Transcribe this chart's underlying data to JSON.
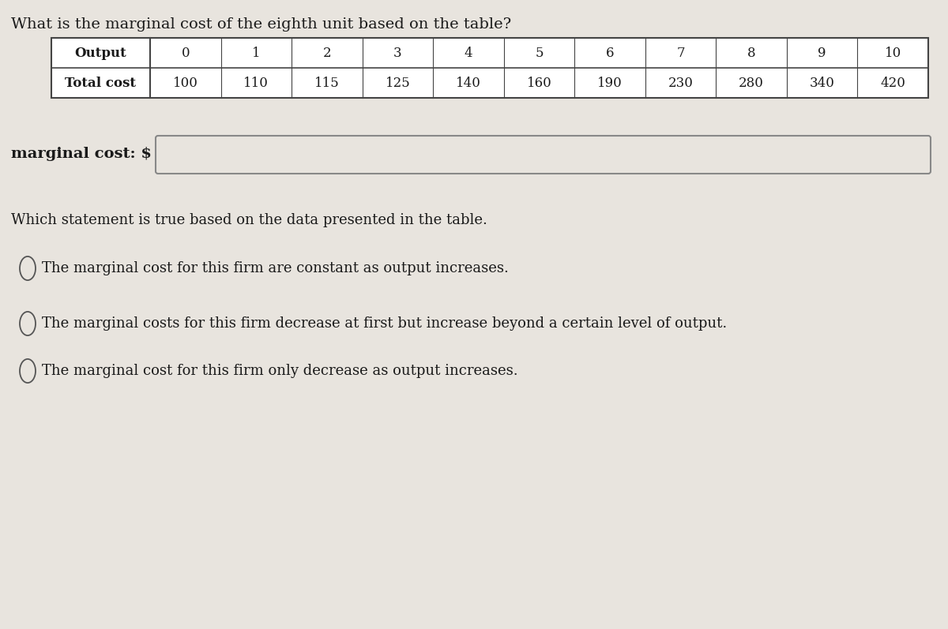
{
  "title": "What is the marginal cost of the eighth unit based on the table?",
  "table_headers": [
    "Output",
    "0",
    "1",
    "2",
    "3",
    "4",
    "5",
    "6",
    "7",
    "8",
    "9",
    "10"
  ],
  "table_row2_label": "Total cost",
  "table_row2_values": [
    "100",
    "110",
    "115",
    "125",
    "140",
    "160",
    "190",
    "230",
    "280",
    "340",
    "420"
  ],
  "marginal_cost_label": "marginal cost: $",
  "which_statement": "Which statement is true based on the data presented in the table.",
  "options": [
    "The marginal cost for this firm are constant as output increases.",
    "The marginal costs for this firm decrease at first but increase beyond a certain level of output.",
    "The marginal cost for this firm only decrease as output increases."
  ],
  "bg_color": "#e8e4de",
  "table_bg": "#ffffff",
  "text_color": "#1a1a1a",
  "input_box_bg": "#e8e4de",
  "input_box_edge": "#888888",
  "table_edge_color": "#444444",
  "font_size_title": 14,
  "font_size_table": 12,
  "font_size_body": 13,
  "radio_circle_color": "#e8e4de",
  "radio_edge_color": "#555555"
}
